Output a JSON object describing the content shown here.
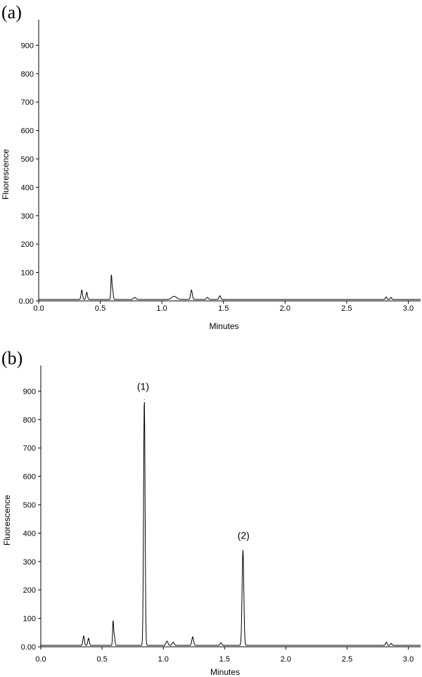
{
  "chart_data": [
    {
      "type": "line",
      "panel_label": "(a)",
      "xlabel": "Minutes",
      "ylabel": "Fluorescence",
      "xlim": [
        0.0,
        3.1
      ],
      "ylim": [
        0,
        990
      ],
      "x_ticks": [
        "0.0",
        "0.5",
        "1.0",
        "1.5",
        "2.0",
        "2.5",
        "3.0"
      ],
      "y_ticks": [
        "0.00",
        "100",
        "200",
        "300",
        "400",
        "500",
        "600",
        "700",
        "800",
        "900"
      ],
      "baseline": 5,
      "peaks": [
        {
          "x": 0.35,
          "y": 38,
          "w": 0.006
        },
        {
          "x": 0.39,
          "y": 30,
          "w": 0.006
        },
        {
          "x": 0.59,
          "y": 88,
          "w": 0.004
        },
        {
          "x": 0.6,
          "y": 40,
          "w": 0.005
        },
        {
          "x": 0.78,
          "y": 12,
          "w": 0.01
        },
        {
          "x": 1.1,
          "y": 16,
          "w": 0.02
        },
        {
          "x": 1.24,
          "y": 38,
          "w": 0.007
        },
        {
          "x": 1.37,
          "y": 12,
          "w": 0.008
        },
        {
          "x": 1.47,
          "y": 18,
          "w": 0.007
        },
        {
          "x": 2.82,
          "y": 14,
          "w": 0.006
        },
        {
          "x": 2.86,
          "y": 12,
          "w": 0.006
        }
      ],
      "annotations": []
    },
    {
      "type": "line",
      "panel_label": "(b)",
      "xlabel": "Minutes",
      "ylabel": "Fluorescence",
      "xlim": [
        0.0,
        3.1
      ],
      "ylim": [
        0,
        990
      ],
      "x_ticks": [
        "0.0",
        "0.5",
        "1.0",
        "1.5",
        "2.0",
        "2.5",
        "3.0"
      ],
      "y_ticks": [
        "0.00",
        "100",
        "200",
        "300",
        "400",
        "500",
        "600",
        "700",
        "800",
        "900"
      ],
      "baseline": 5,
      "peaks": [
        {
          "x": 0.35,
          "y": 38,
          "w": 0.006
        },
        {
          "x": 0.39,
          "y": 30,
          "w": 0.006
        },
        {
          "x": 0.59,
          "y": 88,
          "w": 0.004
        },
        {
          "x": 0.6,
          "y": 40,
          "w": 0.005
        },
        {
          "x": 0.845,
          "y": 870,
          "w": 0.006
        },
        {
          "x": 1.03,
          "y": 20,
          "w": 0.008
        },
        {
          "x": 1.08,
          "y": 16,
          "w": 0.008
        },
        {
          "x": 1.24,
          "y": 35,
          "w": 0.007
        },
        {
          "x": 1.47,
          "y": 14,
          "w": 0.007
        },
        {
          "x": 1.65,
          "y": 340,
          "w": 0.007
        },
        {
          "x": 2.82,
          "y": 16,
          "w": 0.006
        },
        {
          "x": 2.86,
          "y": 12,
          "w": 0.006
        }
      ],
      "annotations": [
        {
          "text": "(1)",
          "x": 0.835,
          "y": 905
        },
        {
          "text": "(2)",
          "x": 1.655,
          "y": 380
        }
      ]
    }
  ]
}
